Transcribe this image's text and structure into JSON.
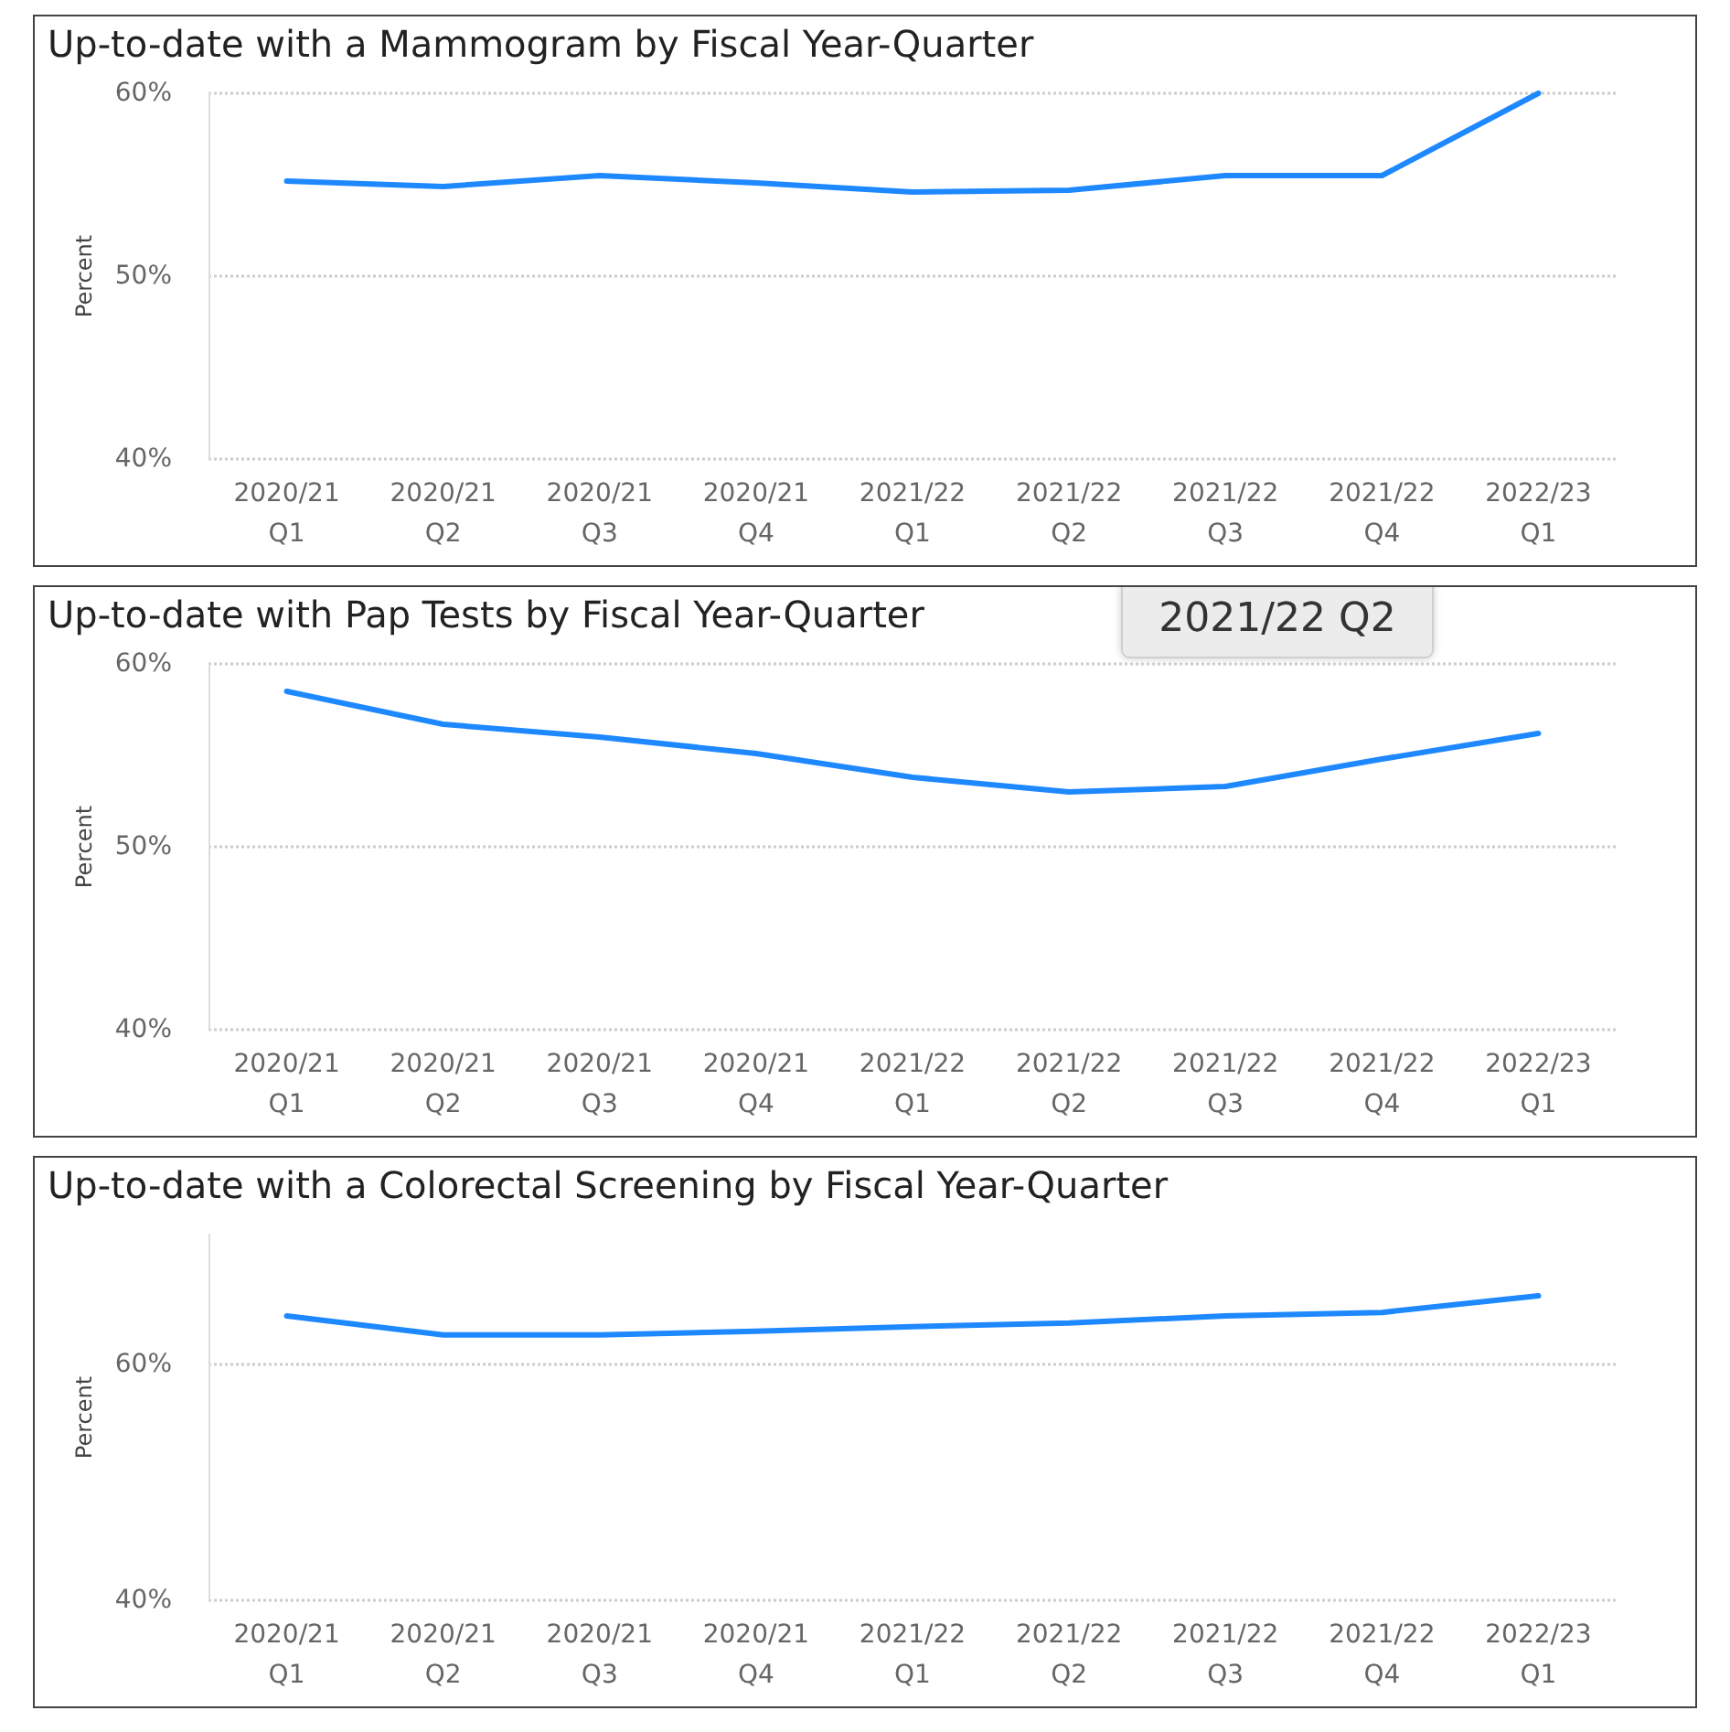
{
  "chart_data": [
    {
      "type": "line",
      "title": "Up-to-date with a Mammogram by Fiscal Year-Quarter",
      "ylabel": "Percent",
      "categories": [
        "2020/21 Q1",
        "2020/21 Q2",
        "2020/21 Q3",
        "2020/21 Q4",
        "2021/22 Q1",
        "2021/22 Q2",
        "2021/22 Q3",
        "2021/22 Q4",
        "2022/23 Q1"
      ],
      "series": [
        {
          "color": "#1e88ff",
          "values": [
            55.2,
            54.9,
            55.5,
            55.1,
            54.6,
            54.7,
            55.5,
            55.5,
            60.0
          ]
        }
      ],
      "ylim": [
        40,
        60
      ],
      "yticks": [
        {
          "value": 40,
          "label": "40%"
        },
        {
          "value": 50,
          "label": "50%"
        },
        {
          "value": 60,
          "label": "60%"
        }
      ],
      "grid": "y",
      "marker": "none",
      "line_style": "solid"
    },
    {
      "type": "line",
      "title": "Up-to-date with Pap Tests by Fiscal Year-Quarter",
      "ylabel": "Percent",
      "categories": [
        "2020/21 Q1",
        "2020/21 Q2",
        "2020/21 Q3",
        "2020/21 Q4",
        "2021/22 Q1",
        "2021/22 Q2",
        "2021/22 Q3",
        "2021/22 Q4",
        "2022/23 Q1"
      ],
      "series": [
        {
          "color": "#1e88ff",
          "values": [
            58.5,
            56.7,
            56.0,
            55.1,
            53.8,
            53.0,
            53.3,
            54.8,
            56.2
          ]
        }
      ],
      "ylim": [
        40,
        60
      ],
      "yticks": [
        {
          "value": 40,
          "label": "40%"
        },
        {
          "value": 50,
          "label": "50%"
        },
        {
          "value": 60,
          "label": "60%"
        }
      ],
      "grid": "y",
      "marker": "none",
      "line_style": "solid",
      "annotations": [
        "2021/22 Q2"
      ]
    },
    {
      "type": "line",
      "title": "Up-to-date with a Colorectal Screening by Fiscal Year-Quarter",
      "ylabel": "Percent",
      "categories": [
        "2020/21 Q1",
        "2020/21 Q2",
        "2020/21 Q3",
        "2020/21 Q4",
        "2021/22 Q1",
        "2021/22 Q2",
        "2021/22 Q3",
        "2021/22 Q4",
        "2022/23 Q1"
      ],
      "series": [
        {
          "color": "#1e88ff",
          "values": [
            64.1,
            62.5,
            62.5,
            62.8,
            63.2,
            63.5,
            64.1,
            64.4,
            65.8
          ]
        }
      ],
      "ylim": [
        40,
        71
      ],
      "yticks": [
        {
          "value": 40,
          "label": "40%"
        },
        {
          "value": 60,
          "label": "60%"
        }
      ],
      "grid": "y",
      "marker": "none",
      "line_style": "solid"
    }
  ]
}
